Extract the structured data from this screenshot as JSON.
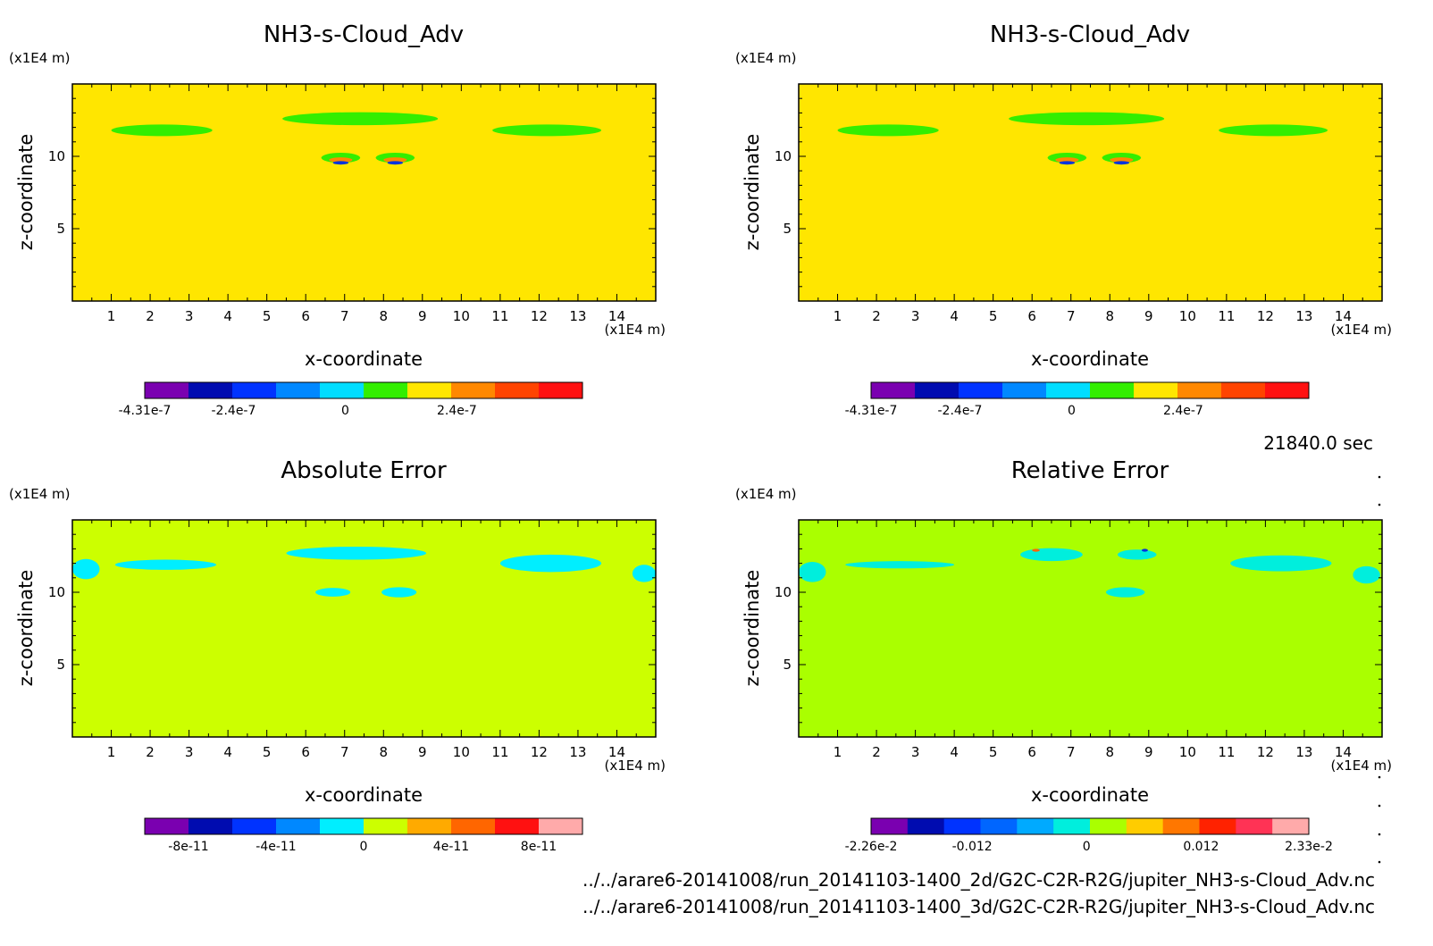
{
  "time_label": "21840.0 sec",
  "file_paths": [
    "../../arare6-20141008/run_20141103-1400_2d/G2C-C2R-R2G/jupiter_NH3-s-Cloud_Adv.nc",
    "../../arare6-20141008/run_20141103-1400_3d/G2C-C2R-R2G/jupiter_NH3-s-Cloud_Adv.nc"
  ],
  "chart_data": [
    {
      "type": "heatmap",
      "title": "NH3-s-Cloud_Adv",
      "xlabel": "x-coordinate",
      "ylabel": "z-coordinate",
      "x_unit": "(x1E4 m)",
      "y_unit": "(x1E4 m)",
      "xlim": [
        0,
        15
      ],
      "ylim": [
        0,
        15
      ],
      "xticks": [
        "1",
        "2",
        "3",
        "4",
        "5",
        "6",
        "7",
        "8",
        "9",
        "10",
        "11",
        "12",
        "13",
        "14"
      ],
      "yticks": [
        "5",
        "10"
      ],
      "background_color": "#ffe600",
      "features": [
        {
          "color": "#33ee00",
          "cx": 2.3,
          "cy": 11.8,
          "rx": 1.3,
          "ry": 0.4
        },
        {
          "color": "#33ee00",
          "cx": 7.4,
          "cy": 12.6,
          "rx": 2.0,
          "ry": 0.45
        },
        {
          "color": "#33ee00",
          "cx": 12.2,
          "cy": 11.8,
          "rx": 1.4,
          "ry": 0.4
        },
        {
          "color": "#33ee00",
          "cx": 6.9,
          "cy": 9.9,
          "rx": 0.5,
          "ry": 0.35
        },
        {
          "color": "#33ee00",
          "cx": 8.3,
          "cy": 9.9,
          "rx": 0.5,
          "ry": 0.35
        },
        {
          "color": "#ff8800",
          "cx": 6.9,
          "cy": 9.75,
          "rx": 0.3,
          "ry": 0.18
        },
        {
          "color": "#ff8800",
          "cx": 8.3,
          "cy": 9.75,
          "rx": 0.3,
          "ry": 0.18
        },
        {
          "color": "#0033dd",
          "cx": 6.9,
          "cy": 9.55,
          "rx": 0.2,
          "ry": 0.12
        },
        {
          "color": "#0033dd",
          "cx": 8.3,
          "cy": 9.55,
          "rx": 0.2,
          "ry": 0.12
        }
      ],
      "colorbar": {
        "colors": [
          "#7a00b0",
          "#000cb0",
          "#0033ff",
          "#0088ff",
          "#00ddff",
          "#33ee00",
          "#ffe600",
          "#ff8800",
          "#ff4400",
          "#ff1111"
        ],
        "tick_labels": [
          "-4.31e-7",
          "-2.4e-7",
          "0",
          "2.4e-7"
        ],
        "tick_values": [
          -4.31e-07,
          -2.4e-07,
          0,
          2.4e-07
        ],
        "range": [
          -4.31e-07,
          5.1e-07
        ]
      }
    },
    {
      "type": "heatmap",
      "title": "NH3-s-Cloud_Adv",
      "xlabel": "x-coordinate",
      "ylabel": "z-coordinate",
      "x_unit": "(x1E4 m)",
      "y_unit": "(x1E4 m)",
      "xlim": [
        0,
        15
      ],
      "ylim": [
        0,
        15
      ],
      "xticks": [
        "1",
        "2",
        "3",
        "4",
        "5",
        "6",
        "7",
        "8",
        "9",
        "10",
        "11",
        "12",
        "13",
        "14"
      ],
      "yticks": [
        "5",
        "10"
      ],
      "background_color": "#ffe600",
      "features": [
        {
          "color": "#33ee00",
          "cx": 2.3,
          "cy": 11.8,
          "rx": 1.3,
          "ry": 0.4
        },
        {
          "color": "#33ee00",
          "cx": 7.4,
          "cy": 12.6,
          "rx": 2.0,
          "ry": 0.45
        },
        {
          "color": "#33ee00",
          "cx": 12.2,
          "cy": 11.8,
          "rx": 1.4,
          "ry": 0.4
        },
        {
          "color": "#33ee00",
          "cx": 6.9,
          "cy": 9.9,
          "rx": 0.5,
          "ry": 0.35
        },
        {
          "color": "#33ee00",
          "cx": 8.3,
          "cy": 9.9,
          "rx": 0.5,
          "ry": 0.35
        },
        {
          "color": "#ff8800",
          "cx": 6.9,
          "cy": 9.75,
          "rx": 0.3,
          "ry": 0.18
        },
        {
          "color": "#ff8800",
          "cx": 8.3,
          "cy": 9.75,
          "rx": 0.3,
          "ry": 0.18
        },
        {
          "color": "#0033dd",
          "cx": 6.9,
          "cy": 9.55,
          "rx": 0.2,
          "ry": 0.12
        },
        {
          "color": "#0033dd",
          "cx": 8.3,
          "cy": 9.55,
          "rx": 0.2,
          "ry": 0.12
        }
      ],
      "colorbar": {
        "colors": [
          "#7a00b0",
          "#000cb0",
          "#0033ff",
          "#0088ff",
          "#00ddff",
          "#33ee00",
          "#ffe600",
          "#ff8800",
          "#ff4400",
          "#ff1111"
        ],
        "tick_labels": [
          "-4.31e-7",
          "-2.4e-7",
          "0",
          "2.4e-7"
        ],
        "tick_values": [
          -4.31e-07,
          -2.4e-07,
          0,
          2.4e-07
        ],
        "range": [
          -4.31e-07,
          5.1e-07
        ]
      }
    },
    {
      "type": "heatmap",
      "title": "Absolute Error",
      "xlabel": "x-coordinate",
      "ylabel": "z-coordinate",
      "x_unit": "(x1E4 m)",
      "y_unit": "(x1E4 m)",
      "xlim": [
        0,
        15
      ],
      "ylim": [
        0,
        15
      ],
      "xticks": [
        "1",
        "2",
        "3",
        "4",
        "5",
        "6",
        "7",
        "8",
        "9",
        "10",
        "11",
        "12",
        "13",
        "14"
      ],
      "yticks": [
        "5",
        "10"
      ],
      "background_color": "#ccff00",
      "features": [
        {
          "color": "#00eeff",
          "cx": 0.35,
          "cy": 11.6,
          "rx": 0.35,
          "ry": 0.7
        },
        {
          "color": "#00eeff",
          "cx": 2.4,
          "cy": 11.9,
          "rx": 1.3,
          "ry": 0.35
        },
        {
          "color": "#00eeff",
          "cx": 7.3,
          "cy": 12.7,
          "rx": 1.8,
          "ry": 0.45
        },
        {
          "color": "#00eeff",
          "cx": 12.3,
          "cy": 12.0,
          "rx": 1.3,
          "ry": 0.6
        },
        {
          "color": "#00eeff",
          "cx": 14.7,
          "cy": 11.3,
          "rx": 0.3,
          "ry": 0.6
        },
        {
          "color": "#00eeff",
          "cx": 6.7,
          "cy": 10.0,
          "rx": 0.45,
          "ry": 0.3
        },
        {
          "color": "#00eeff",
          "cx": 8.4,
          "cy": 10.0,
          "rx": 0.45,
          "ry": 0.35
        }
      ],
      "colorbar": {
        "colors": [
          "#7a00b0",
          "#000cb0",
          "#0033ff",
          "#0088ff",
          "#00eeff",
          "#ccff00",
          "#ffaa00",
          "#ff6600",
          "#ff1111",
          "#ffaaaa"
        ],
        "tick_labels": [
          "-8e-11",
          "-4e-11",
          "0",
          "4e-11",
          "8e-11"
        ],
        "tick_values": [
          -8e-11,
          -4e-11,
          0,
          4e-11,
          8e-11
        ],
        "range": [
          -1e-10,
          1e-10
        ]
      }
    },
    {
      "type": "heatmap",
      "title": "Relative Error",
      "xlabel": "x-coordinate",
      "ylabel": "z-coordinate",
      "x_unit": "(x1E4 m)",
      "y_unit": "(x1E4 m)",
      "xlim": [
        0,
        15
      ],
      "ylim": [
        0,
        15
      ],
      "xticks": [
        "1",
        "2",
        "3",
        "4",
        "5",
        "6",
        "7",
        "8",
        "9",
        "10",
        "11",
        "12",
        "13",
        "14"
      ],
      "yticks": [
        "5",
        "10"
      ],
      "background_color": "#aaff00",
      "features": [
        {
          "color": "#00eedd",
          "cx": 0.35,
          "cy": 11.4,
          "rx": 0.35,
          "ry": 0.7
        },
        {
          "color": "#00eedd",
          "cx": 2.6,
          "cy": 11.9,
          "rx": 1.4,
          "ry": 0.25
        },
        {
          "color": "#00eedd",
          "cx": 6.5,
          "cy": 12.6,
          "rx": 0.8,
          "ry": 0.45
        },
        {
          "color": "#00eedd",
          "cx": 8.7,
          "cy": 12.6,
          "rx": 0.5,
          "ry": 0.35
        },
        {
          "color": "#00eedd",
          "cx": 12.4,
          "cy": 12.0,
          "rx": 1.3,
          "ry": 0.55
        },
        {
          "color": "#00eedd",
          "cx": 14.6,
          "cy": 11.2,
          "rx": 0.35,
          "ry": 0.6
        },
        {
          "color": "#00eedd",
          "cx": 8.4,
          "cy": 10.0,
          "rx": 0.5,
          "ry": 0.35
        },
        {
          "color": "#ff6600",
          "cx": 6.1,
          "cy": 12.9,
          "rx": 0.1,
          "ry": 0.1
        },
        {
          "color": "#0033dd",
          "cx": 8.9,
          "cy": 12.9,
          "rx": 0.08,
          "ry": 0.1
        }
      ],
      "colorbar": {
        "colors": [
          "#7a00b0",
          "#000cb0",
          "#0033ff",
          "#0066ff",
          "#00aaff",
          "#00eedd",
          "#aaff00",
          "#ffcc00",
          "#ff7700",
          "#ff2200",
          "#ff3355",
          "#ffaaaa"
        ],
        "tick_labels": [
          "-2.26e-2",
          "-0.012",
          "0",
          "0.012",
          "2.33e-2"
        ],
        "tick_values": [
          -0.0226,
          -0.012,
          0,
          0.012,
          0.0233
        ],
        "range": [
          -0.0226,
          0.0233
        ]
      }
    }
  ]
}
